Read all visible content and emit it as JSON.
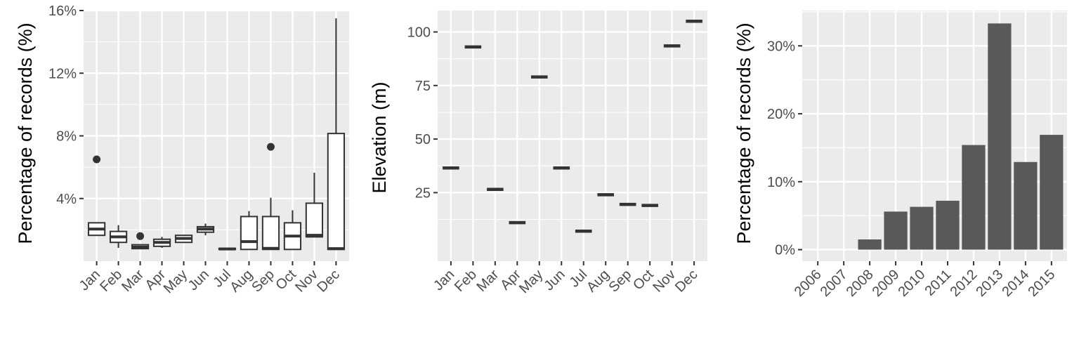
{
  "colors": {
    "panel_bg": "#ebebeb",
    "grid": "#ffffff",
    "box_fill": "#ffffff",
    "box_line": "#333333",
    "bar_fill": "#595959",
    "tick_text": "#4d4d4d",
    "axis_title": "#000000"
  },
  "chart_data": [
    {
      "type": "boxplot",
      "ylabel": "Percentage of records (%)",
      "xlabel": "",
      "ylim": [
        0,
        16
      ],
      "y_ticks": [
        4,
        8,
        12,
        16
      ],
      "y_tick_labels": [
        "4%",
        "8%",
        "12%",
        "16%"
      ],
      "grid": true,
      "categories": [
        "Jan",
        "Feb",
        "Mar",
        "Apr",
        "May",
        "Jun",
        "Jul",
        "Aug",
        "Sep",
        "Oct",
        "Nov",
        "Dec"
      ],
      "boxes": [
        {
          "low": 1.65,
          "q1": 1.65,
          "median": 2.05,
          "q3": 2.45,
          "high": 2.45,
          "outliers": [
            6.5
          ]
        },
        {
          "low": 0.85,
          "q1": 1.2,
          "median": 1.55,
          "q3": 1.9,
          "high": 2.3,
          "outliers": []
        },
        {
          "low": 0.8,
          "q1": 0.8,
          "median": 0.9,
          "q3": 1.05,
          "high": 1.05,
          "outliers": [
            1.6
          ]
        },
        {
          "low": 0.85,
          "q1": 0.95,
          "median": 1.2,
          "q3": 1.4,
          "high": 1.55,
          "outliers": []
        },
        {
          "low": 1.2,
          "q1": 1.2,
          "median": 1.45,
          "q3": 1.65,
          "high": 1.65,
          "outliers": []
        },
        {
          "low": 1.65,
          "q1": 1.85,
          "median": 2.05,
          "q3": 2.2,
          "high": 2.4,
          "outliers": []
        },
        {
          "low": 0.75,
          "q1": 0.75,
          "median": 0.78,
          "q3": 0.82,
          "high": 0.82,
          "outliers": []
        },
        {
          "low": 0.75,
          "q1": 0.75,
          "median": 1.25,
          "q3": 2.85,
          "high": 3.2,
          "outliers": []
        },
        {
          "low": 0.75,
          "q1": 0.75,
          "median": 0.82,
          "q3": 2.85,
          "high": 4.05,
          "outliers": [
            7.3
          ]
        },
        {
          "low": 0.75,
          "q1": 0.75,
          "median": 1.6,
          "q3": 2.45,
          "high": 3.25,
          "outliers": []
        },
        {
          "low": 1.55,
          "q1": 1.55,
          "median": 1.65,
          "q3": 3.7,
          "high": 5.65,
          "outliers": []
        },
        {
          "low": 0.75,
          "q1": 0.75,
          "median": 0.8,
          "q3": 8.15,
          "high": 15.5,
          "outliers": []
        }
      ]
    },
    {
      "type": "scatter",
      "ylabel": "Elevation (m)",
      "xlabel": "",
      "ylim": [
        -7,
        110
      ],
      "y_ticks": [
        25,
        50,
        75,
        100
      ],
      "y_tick_labels": [
        "25",
        "50",
        "75",
        "100"
      ],
      "grid": true,
      "categories": [
        "Jan",
        "Feb",
        "Mar",
        "Apr",
        "May",
        "Jun",
        "Jul",
        "Aug",
        "Sep",
        "Oct",
        "Nov",
        "Dec"
      ],
      "values": [
        36.5,
        93,
        26.5,
        11,
        79,
        36.5,
        7,
        24,
        19.5,
        19,
        93.5,
        105
      ]
    },
    {
      "type": "bar",
      "ylabel": "Percentage of records (%)",
      "xlabel": "",
      "ylim": [
        -1.7,
        35.2
      ],
      "y_ticks": [
        0,
        10,
        20,
        30
      ],
      "y_tick_labels": [
        "0%",
        "10%",
        "20%",
        "30%"
      ],
      "grid": true,
      "categories": [
        "2006",
        "2007",
        "2008",
        "2009",
        "2010",
        "2011",
        "2012",
        "2013",
        "2014",
        "2015"
      ],
      "values": [
        0,
        0,
        1.5,
        5.6,
        6.3,
        7.2,
        15.4,
        33.3,
        12.9,
        16.9
      ]
    }
  ]
}
